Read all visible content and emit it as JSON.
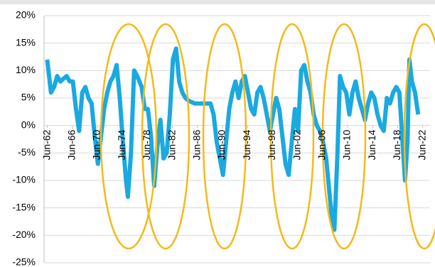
{
  "chart_data": {
    "type": "line",
    "x": [
      1962.4,
      1963,
      1963.5,
      1964,
      1964.5,
      1965,
      1965.5,
      1966,
      1966.5,
      1967,
      1967.5,
      1968,
      1968.5,
      1969,
      1969.5,
      1970,
      1970.5,
      1971,
      1971.5,
      1972,
      1972.5,
      1973,
      1973.5,
      1974,
      1974.5,
      1975,
      1975.3,
      1975.8,
      1976.3,
      1976.8,
      1977.5,
      1978,
      1978.5,
      1979,
      1979.5,
      1980,
      1980.5,
      1981,
      1981.5,
      1982,
      1982.5,
      1983,
      1983.5,
      1984,
      1984.5,
      1985,
      1986,
      1987,
      1988,
      1988.5,
      1989,
      1989.5,
      1990,
      1990.5,
      1991,
      1991.5,
      1992,
      1992.5,
      1993,
      1993.5,
      1994,
      1994.5,
      1995,
      1995.5,
      1996,
      1996.5,
      1997,
      1997.5,
      1998,
      1998.5,
      1999,
      1999.5,
      2000,
      2000.5,
      2001,
      2001.5,
      2002,
      2002.5,
      2003,
      2003.5,
      2004,
      2004.5,
      2005,
      2005.5,
      2006,
      2006.5,
      2007,
      2007.5,
      2008,
      2008.3,
      2008.8,
      2009.2,
      2009.7,
      2010.2,
      2010.7,
      2011.2,
      2011.7,
      2012.2,
      2012.7,
      2013.2,
      2013.7,
      2014.2,
      2014.7,
      2015.2,
      2015.7,
      2016.2,
      2016.7,
      2017.2,
      2017.7,
      2018.2,
      2018.7,
      2019.2,
      2019.6,
      2020,
      2020.3,
      2020.7,
      2021.2,
      2021.7
    ],
    "series": [
      {
        "color": "#1aa9e0",
        "values": [
          12,
          6,
          7,
          9,
          8,
          8.5,
          9,
          8,
          8,
          3,
          -1,
          6,
          7,
          5,
          4,
          -2,
          -7,
          -2,
          3,
          6,
          8,
          9,
          11,
          5,
          -3,
          -10,
          -13,
          -5,
          10,
          9,
          7,
          3,
          3,
          -2,
          -11,
          -4,
          1,
          -6,
          -5,
          2,
          12,
          14,
          8,
          6,
          5,
          4.5,
          4,
          4,
          4,
          4,
          2,
          -3,
          -6,
          -9,
          -3,
          3,
          6,
          8,
          5,
          8,
          9,
          6,
          3,
          2,
          6,
          7,
          5,
          2,
          -1,
          2,
          5,
          3,
          -2,
          -7,
          -9,
          -3,
          3,
          -1,
          10,
          11,
          8,
          6,
          2,
          0,
          -1,
          -3,
          -6,
          -12,
          -18,
          -19,
          -5,
          9,
          7,
          6,
          2,
          6,
          8,
          5,
          3,
          1,
          4,
          6,
          5,
          2,
          0,
          -1,
          5,
          4,
          6,
          7,
          6,
          -3,
          -10,
          -3,
          12,
          8,
          6,
          2
        ]
      }
    ],
    "xlim": [
      1961.9,
      2023.6
    ],
    "xticks": [
      {
        "value": 1962.42,
        "label": "Jun-62"
      },
      {
        "value": 1966.42,
        "label": "Jun-66"
      },
      {
        "value": 1970.42,
        "label": "Jun-70"
      },
      {
        "value": 1974.42,
        "label": "Jun-74"
      },
      {
        "value": 1978.42,
        "label": "Jun-78"
      },
      {
        "value": 1982.42,
        "label": "Jun-82"
      },
      {
        "value": 1986.42,
        "label": "Jun-86"
      },
      {
        "value": 1990.42,
        "label": "Jun-90"
      },
      {
        "value": 1994.42,
        "label": "Jun-94"
      },
      {
        "value": 1998.42,
        "label": "Jun-98"
      },
      {
        "value": 2002.42,
        "label": "Jun-02"
      },
      {
        "value": 2006.42,
        "label": "Jun-06"
      },
      {
        "value": 2010.42,
        "label": "Jun-10"
      },
      {
        "value": 2014.42,
        "label": "Jun-14"
      },
      {
        "value": 2018.42,
        "label": "Jun-18"
      },
      {
        "value": 2022.42,
        "label": "Jun-22"
      }
    ],
    "ylim": [
      -25,
      20
    ],
    "yticks": [
      {
        "value": -25,
        "label": "-25%"
      },
      {
        "value": -20,
        "label": "-20%"
      },
      {
        "value": -15,
        "label": "-15%"
      },
      {
        "value": -10,
        "label": "-10%"
      },
      {
        "value": -5,
        "label": "-5%"
      },
      {
        "value": 0,
        "label": "0%"
      },
      {
        "value": 5,
        "label": "5%"
      },
      {
        "value": 10,
        "label": "10%"
      },
      {
        "value": 15,
        "label": "15%"
      },
      {
        "value": 20,
        "label": "20%"
      }
    ],
    "grid": true
  }
}
